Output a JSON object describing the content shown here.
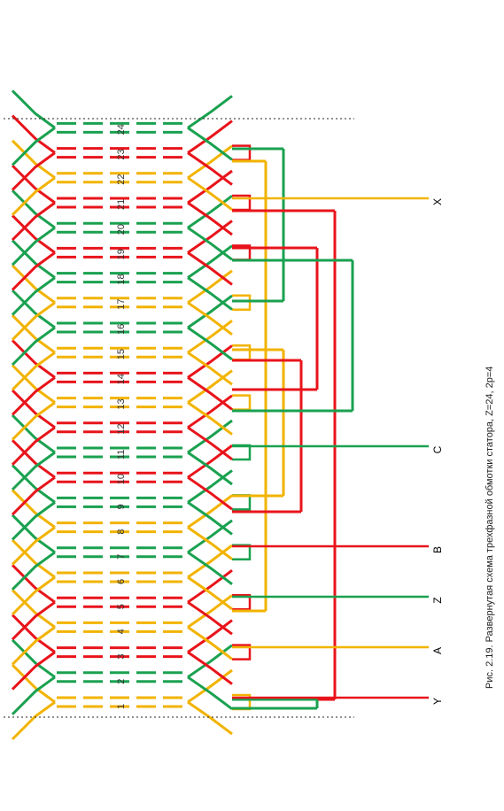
{
  "caption": "Рис. 2.19. Развернутая схема трехфазной обмотки статора, Z=24, 2p=4",
  "colors": {
    "phase_red": "#e8141b",
    "phase_green": "#1aa150",
    "phase_yellow": "#f2b300"
  },
  "slots": [
    "1",
    "2",
    "3",
    "4",
    "5",
    "6",
    "7",
    "8",
    "9",
    "10",
    "11",
    "12",
    "13",
    "14",
    "15",
    "16",
    "17",
    "18",
    "19",
    "20",
    "21",
    "22",
    "23",
    "24"
  ],
  "slot_phase": [
    "yellow",
    "green",
    "red",
    "yellow",
    "red",
    "yellow",
    "green",
    "yellow",
    "green",
    "red",
    "green",
    "red",
    "yellow",
    "red",
    "yellow",
    "green",
    "yellow",
    "green",
    "red",
    "green",
    "red",
    "yellow",
    "red",
    "green"
  ],
  "terminals": [
    {
      "label": "X",
      "phase": "yellow"
    },
    {
      "label": "C",
      "phase": "green"
    },
    {
      "label": "B",
      "phase": "red"
    },
    {
      "label": "Z",
      "phase": "green"
    },
    {
      "label": "A",
      "phase": "yellow"
    },
    {
      "label": "Y",
      "phase": "red"
    }
  ]
}
